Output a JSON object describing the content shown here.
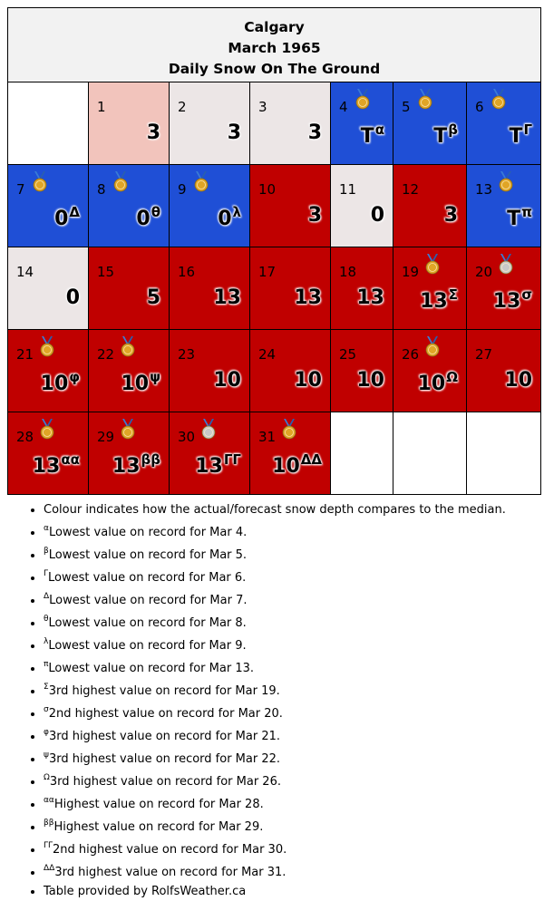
{
  "header": {
    "city": "Calgary",
    "month": "March 1965",
    "subtitle": "Daily Snow On The Ground"
  },
  "colors": {
    "below_median": "#1f4fd6",
    "above_median": "#c00000",
    "slightly_above": "#f2c4bc",
    "near_median": "#ece6e6",
    "empty": "#ffffff",
    "gold_medal": "#e0a526",
    "silver_medal": "#c8c8c8"
  },
  "weeks": [
    [
      {
        "blank": true
      },
      {
        "day": "1",
        "value": "3",
        "sup": "",
        "color": "pink",
        "medal": ""
      },
      {
        "day": "2",
        "value": "3",
        "sup": "",
        "color": "grey",
        "medal": ""
      },
      {
        "day": "3",
        "value": "3",
        "sup": "",
        "color": "grey",
        "medal": ""
      },
      {
        "day": "4",
        "value": "T",
        "sup": "α",
        "color": "blue",
        "medal": "gold-medal"
      },
      {
        "day": "5",
        "value": "T",
        "sup": "β",
        "color": "blue",
        "medal": "gold-medal"
      },
      {
        "day": "6",
        "value": "T",
        "sup": "Γ",
        "color": "blue",
        "medal": "gold-medal"
      }
    ],
    [
      {
        "day": "7",
        "value": "0",
        "sup": "Δ",
        "color": "blue",
        "medal": "gold-medal"
      },
      {
        "day": "8",
        "value": "0",
        "sup": "θ",
        "color": "blue",
        "medal": "gold-medal"
      },
      {
        "day": "9",
        "value": "0",
        "sup": "λ",
        "color": "blue",
        "medal": "gold-medal"
      },
      {
        "day": "10",
        "value": "3",
        "sup": "",
        "color": "red",
        "medal": ""
      },
      {
        "day": "11",
        "value": "0",
        "sup": "",
        "color": "grey",
        "medal": ""
      },
      {
        "day": "12",
        "value": "3",
        "sup": "",
        "color": "red",
        "medal": ""
      },
      {
        "day": "13",
        "value": "T",
        "sup": "π",
        "color": "blue",
        "medal": "gold-medal"
      }
    ],
    [
      {
        "day": "14",
        "value": "0",
        "sup": "",
        "color": "grey",
        "medal": ""
      },
      {
        "day": "15",
        "value": "5",
        "sup": "",
        "color": "red",
        "medal": ""
      },
      {
        "day": "16",
        "value": "13",
        "sup": "",
        "color": "red",
        "medal": ""
      },
      {
        "day": "17",
        "value": "13",
        "sup": "",
        "color": "red",
        "medal": ""
      },
      {
        "day": "18",
        "value": "13",
        "sup": "",
        "color": "red",
        "medal": ""
      },
      {
        "day": "19",
        "value": "13",
        "sup": "Σ",
        "color": "red",
        "medal": "bronze-medal"
      },
      {
        "day": "20",
        "value": "13",
        "sup": "σ",
        "color": "red",
        "medal": "silver-medal"
      }
    ],
    [
      {
        "day": "21",
        "value": "10",
        "sup": "φ",
        "color": "red",
        "medal": "bronze-medal"
      },
      {
        "day": "22",
        "value": "10",
        "sup": "ψ",
        "color": "red",
        "medal": "bronze-medal"
      },
      {
        "day": "23",
        "value": "10",
        "sup": "",
        "color": "red",
        "medal": ""
      },
      {
        "day": "24",
        "value": "10",
        "sup": "",
        "color": "red",
        "medal": ""
      },
      {
        "day": "25",
        "value": "10",
        "sup": "",
        "color": "red",
        "medal": ""
      },
      {
        "day": "26",
        "value": "10",
        "sup": "Ω",
        "color": "red",
        "medal": "bronze-medal"
      },
      {
        "day": "27",
        "value": "10",
        "sup": "",
        "color": "red",
        "medal": ""
      }
    ],
    [
      {
        "day": "28",
        "value": "13",
        "sup": "αα",
        "color": "red",
        "medal": "gold-medal"
      },
      {
        "day": "29",
        "value": "13",
        "sup": "ββ",
        "color": "red",
        "medal": "gold-medal"
      },
      {
        "day": "30",
        "value": "13",
        "sup": "ΓΓ",
        "color": "red",
        "medal": "silver-medal"
      },
      {
        "day": "31",
        "value": "10",
        "sup": "ΔΔ",
        "color": "red",
        "medal": "bronze-medal"
      },
      {
        "blank": true
      },
      {
        "blank": true
      },
      {
        "blank": true
      }
    ]
  ],
  "notes": [
    {
      "sup": "",
      "text": "Colour indicates how the actual/forecast snow depth compares to the median."
    },
    {
      "sup": "α",
      "text": "Lowest value on record for Mar 4."
    },
    {
      "sup": "β",
      "text": "Lowest value on record for Mar 5."
    },
    {
      "sup": "Γ",
      "text": "Lowest value on record for Mar 6."
    },
    {
      "sup": "Δ",
      "text": "Lowest value on record for Mar 7."
    },
    {
      "sup": "θ",
      "text": "Lowest value on record for Mar 8."
    },
    {
      "sup": "λ",
      "text": "Lowest value on record for Mar 9."
    },
    {
      "sup": "π",
      "text": "Lowest value on record for Mar 13."
    },
    {
      "sup": "Σ",
      "text": "3rd highest value on record for Mar 19."
    },
    {
      "sup": "σ",
      "text": "2nd highest value on record for Mar 20."
    },
    {
      "sup": "φ",
      "text": "3rd highest value on record for Mar 21."
    },
    {
      "sup": "ψ",
      "text": "3rd highest value on record for Mar 22."
    },
    {
      "sup": "Ω",
      "text": "3rd highest value on record for Mar 26."
    },
    {
      "sup": "αα",
      "text": "Highest value on record for Mar 28."
    },
    {
      "sup": "ββ",
      "text": "Highest value on record for Mar 29."
    },
    {
      "sup": "ΓΓ",
      "text": "2nd highest value on record for Mar 30."
    },
    {
      "sup": "ΔΔ",
      "text": "3rd highest value on record for Mar 31."
    },
    {
      "sup": "",
      "text": "Table provided by RolfsWeather.ca"
    }
  ]
}
